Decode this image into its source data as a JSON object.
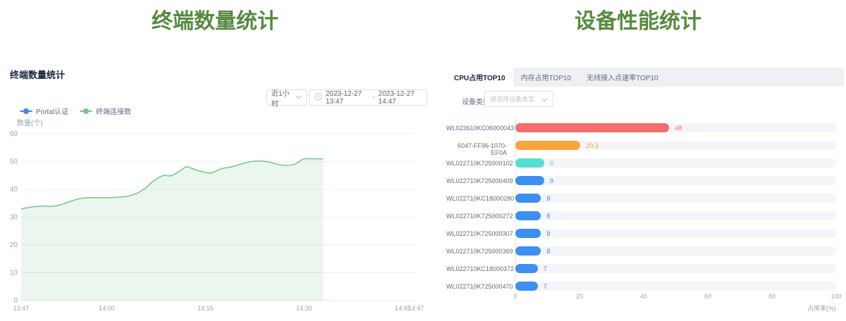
{
  "page": {
    "left_title": "终端数量统计",
    "right_title": "设备性能统计"
  },
  "colors": {
    "title_green": "#568b3f",
    "heading": "#17233d",
    "text_secondary": "#5e6d82",
    "muted": "#98a3b8",
    "placeholder": "#c0c4cc",
    "border": "#dcdfe6",
    "tab_bar_bg": "#eef0f4",
    "grid_line": "#eef0f4",
    "axis_line": "#e4e7ee",
    "bar_track": "#f3f5f9",
    "line_green": "#74c58c",
    "area_green_fill": "rgba(116,197,140,0.15)",
    "legend_blue": "#4086f4"
  },
  "left_panel": {
    "card_title": "终端数量统计",
    "time_range_select": {
      "value": "近1小时"
    },
    "date_range": {
      "start": "2023-12-27 13:47",
      "separator": "-",
      "end": "2023-12-27 14:47"
    },
    "legend": [
      {
        "label": "Portal认证",
        "color": "#4086f4"
      },
      {
        "label": "终端连接数",
        "color": "#74c58c"
      }
    ],
    "y_axis_name": "数量(个)"
  },
  "right_panel": {
    "tabs": [
      {
        "label": "CPU占用TOP10",
        "active": true
      },
      {
        "label": "内存占用TOP10",
        "active": false
      },
      {
        "label": "无线接入点速率TOP10",
        "active": false
      }
    ],
    "device_type_label": "设备类型",
    "device_type_placeholder": "请选择设备类型"
  },
  "chart_data": [
    {
      "type": "area",
      "title": "终端数量统计",
      "ylabel": "数量(个)",
      "ylim": [
        0,
        60
      ],
      "y_ticks": [
        0,
        10,
        20,
        30,
        40,
        50,
        60
      ],
      "xlim_minutes": [
        0,
        60
      ],
      "x_ticks": [
        {
          "t": 0,
          "label": "13:47"
        },
        {
          "t": 13,
          "label": "14:00"
        },
        {
          "t": 28,
          "label": "14:15"
        },
        {
          "t": 43,
          "label": "14:30"
        },
        {
          "t": 58,
          "label": "14:45"
        },
        {
          "t": 60,
          "label": "14:47"
        }
      ],
      "series": [
        {
          "name": "Portal认证",
          "color": "#4086f4",
          "points": []
        },
        {
          "name": "终端连接数",
          "color": "#74c58c",
          "points": [
            [
              0,
              33
            ],
            [
              1.8,
              33.7
            ],
            [
              3.4,
              34
            ],
            [
              4.7,
              33.9
            ],
            [
              5.9,
              34.4
            ],
            [
              7.6,
              35.8
            ],
            [
              9.2,
              36.8
            ],
            [
              10.9,
              37
            ],
            [
              13.4,
              37
            ],
            [
              14.7,
              37.2
            ],
            [
              16.3,
              37.6
            ],
            [
              17.6,
              38.6
            ],
            [
              18.8,
              40.3
            ],
            [
              20,
              42.8
            ],
            [
              20.9,
              44.2
            ],
            [
              21.7,
              45
            ],
            [
              22.8,
              44.9
            ],
            [
              23.9,
              46.3
            ],
            [
              25.1,
              48.1
            ],
            [
              26,
              47.5
            ],
            [
              27.1,
              46.6
            ],
            [
              28.8,
              45.9
            ],
            [
              30.4,
              47.4
            ],
            [
              32.1,
              48.2
            ],
            [
              34.2,
              49.6
            ],
            [
              35.7,
              50.2
            ],
            [
              37.5,
              49.9
            ],
            [
              39.2,
              48.9
            ],
            [
              40.3,
              48.6
            ],
            [
              41.7,
              49.2
            ],
            [
              42.9,
              50.9
            ],
            [
              44,
              51
            ],
            [
              45.9,
              51
            ]
          ]
        }
      ]
    },
    {
      "type": "bar",
      "orientation": "horizontal",
      "xlabel": "占用率(%)",
      "xlim": [
        0,
        100
      ],
      "x_ticks": [
        0,
        20,
        40,
        60,
        80,
        100
      ],
      "categories": [
        "WL023610KC06000043",
        "6047-FF96-1070-EF0A",
        "WL022710K725000102",
        "WL022710K725000409",
        "WL022710KC18000280",
        "WL022710K725000272",
        "WL022710K725000307",
        "WL022710K725000369",
        "WL022710KC18000372",
        "WL022710K725000470"
      ],
      "values": [
        48,
        20.3,
        9,
        9,
        8,
        8,
        8,
        8,
        7,
        7
      ],
      "value_labels": [
        "48",
        "20.3",
        "9",
        "9",
        "8",
        "8",
        "8",
        "8",
        "7",
        "7"
      ],
      "bar_colors": [
        "#f56c6c",
        "#f9a43d",
        "#52dfd0",
        "#3d8ff2",
        "#3d8ff2",
        "#3d8ff2",
        "#3d8ff2",
        "#3d8ff2",
        "#3d8ff2",
        "#3d8ff2"
      ]
    }
  ]
}
